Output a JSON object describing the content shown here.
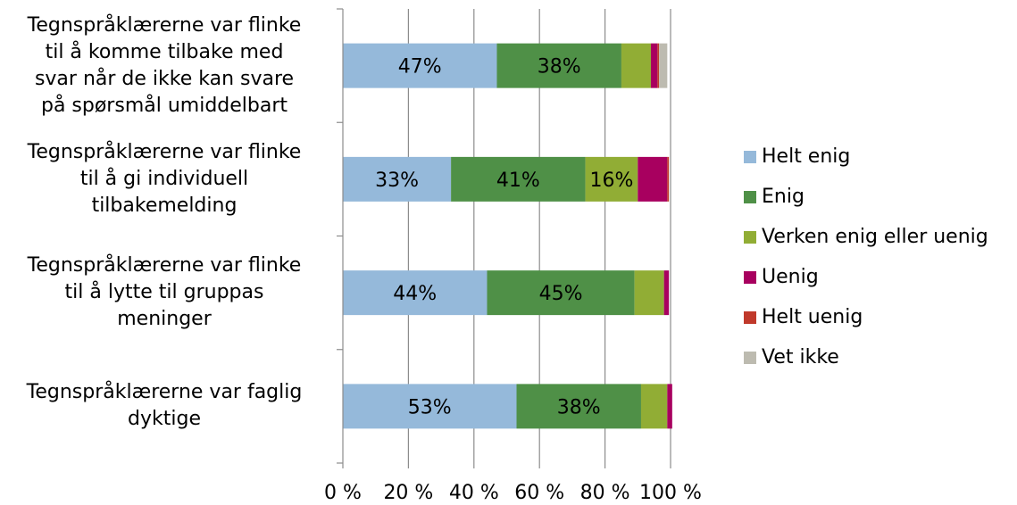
{
  "chart_data": {
    "type": "bar",
    "orientation": "horizontal",
    "stacked": true,
    "title": "",
    "xlabel": "",
    "ylabel": "",
    "xlim": [
      0,
      100
    ],
    "x_ticks": [
      "0 %",
      "20 %",
      "40 %",
      "60 %",
      "80 %",
      "100 %"
    ],
    "x_tick_values": [
      0,
      20,
      40,
      60,
      80,
      100
    ],
    "grid": "vertical",
    "legend_position": "right",
    "categories": [
      "Tegnspråklærerne var flinke til å komme tilbake med svar når de ikke kan svare på spørsmål umiddelbart",
      "Tegnspråklærerne var flinke til å gi individuell tilbakemelding",
      "Tegnspråklærerne var flinke til å lytte til gruppas meninger",
      "Tegnspråklærerne var faglig dyktige"
    ],
    "category_lines": [
      [
        "Tegnspråklærerne var flinke",
        "til å komme tilbake med",
        "svar når de ikke kan svare",
        "på spørsmål umiddelbart"
      ],
      [
        "Tegnspråklærerne var flinke",
        "til å gi individuell",
        "tilbakemelding"
      ],
      [
        "Tegnspråklærerne var flinke",
        "til å lytte til gruppas",
        "meninger"
      ],
      [
        "Tegnspråklærerne var faglig",
        "dyktige"
      ]
    ],
    "series": [
      {
        "name": "Helt enig",
        "color": "#95b9da",
        "values": [
          47,
          33,
          44,
          53
        ],
        "labels": [
          "47%",
          "33%",
          "44%",
          "53%"
        ]
      },
      {
        "name": "Enig",
        "color": "#4f9047",
        "values": [
          38,
          41,
          45,
          38
        ],
        "labels": [
          "38%",
          "41%",
          "45%",
          "38%"
        ]
      },
      {
        "name": "Verken enig eller uenig",
        "color": "#91ad35",
        "values": [
          9,
          16,
          9,
          8
        ],
        "labels": [
          "",
          "16%",
          "",
          ""
        ]
      },
      {
        "name": "Uenig",
        "color": "#a8005f",
        "values": [
          2,
          9,
          1.5,
          1.5
        ],
        "labels": [
          "",
          "",
          "",
          ""
        ]
      },
      {
        "name": "Helt uenig",
        "color": "#c0392b",
        "values": [
          0.5,
          0.5,
          0,
          0
        ],
        "labels": [
          "",
          "",
          "",
          ""
        ]
      },
      {
        "name": "Vet ikke",
        "color": "#bdbbb0",
        "values": [
          2.5,
          0,
          0,
          0
        ],
        "labels": [
          "",
          "",
          "",
          ""
        ]
      }
    ]
  }
}
